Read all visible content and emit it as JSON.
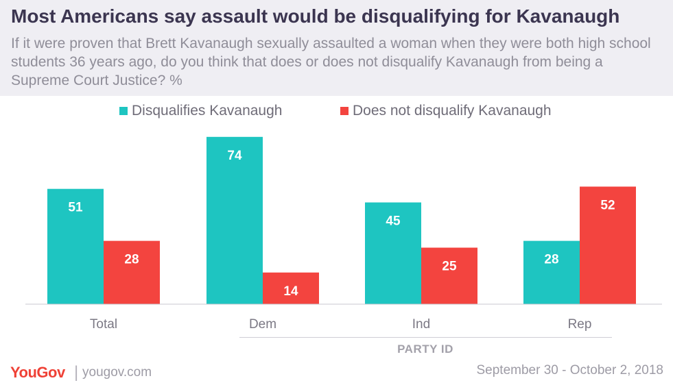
{
  "colors": {
    "disqualifies": "#1ec5c1",
    "does_not": "#f3443f",
    "title": "#3b3550",
    "brand": "#ef4136"
  },
  "header": {
    "title": "Most Americans say assault would be disqualifying for Kavanaugh",
    "subtitle": "If it were proven that Brett Kavanaugh sexually assaulted a woman when they were both high school students 36 years ago, do you think that does or does not disqualify Kavanaugh from being a Supreme Court Justice? %"
  },
  "chart_data": {
    "type": "bar",
    "categories": [
      "Total",
      "Dem",
      "Ind",
      "Rep"
    ],
    "series": [
      {
        "name": "Disqualifies Kavanaugh",
        "values": [
          51,
          74,
          45,
          28
        ]
      },
      {
        "name": "Does not disqualify Kavanaugh",
        "values": [
          28,
          14,
          25,
          52
        ]
      }
    ],
    "group_label": "PARTY ID",
    "ylim": [
      0,
      80
    ],
    "grid": false,
    "legend": "top-center"
  },
  "footer": {
    "brand": "YouGov",
    "separator": "|",
    "site": "yougov.com",
    "date": "September 30 - October 2, 2018"
  }
}
